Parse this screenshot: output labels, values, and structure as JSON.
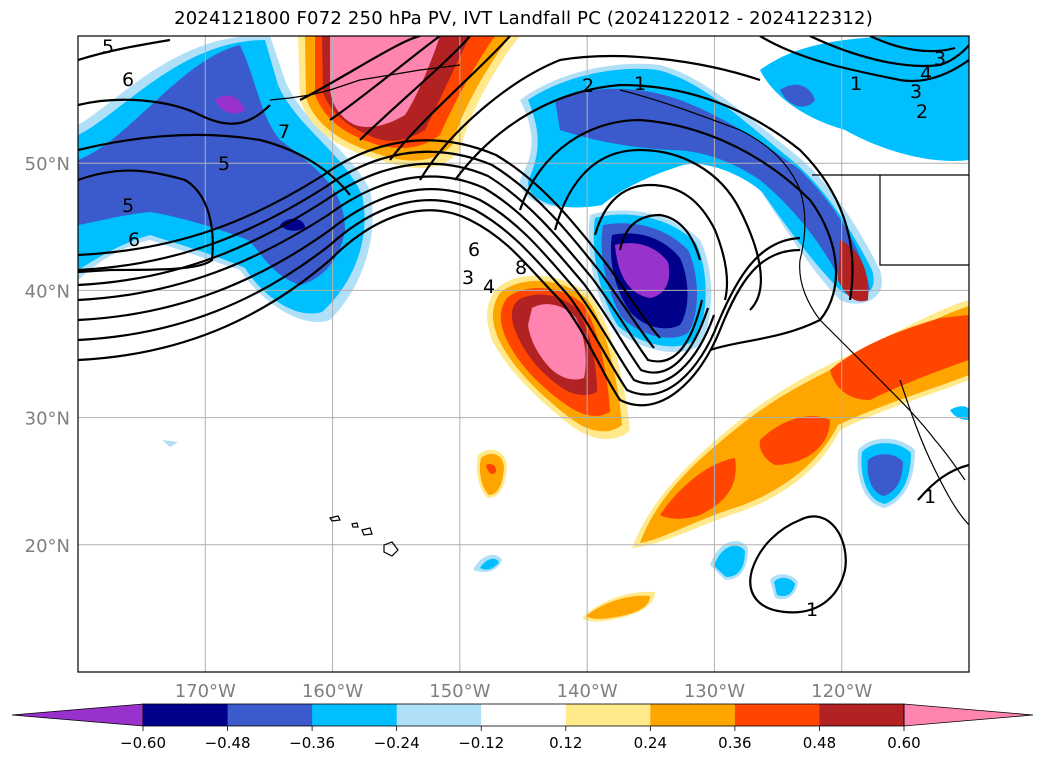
{
  "title": "2024121800 F072 250 hPa PV, IVT Landfall PC (2024122012 - 2024122312)",
  "map": {
    "lon_range": [
      180,
      110
    ],
    "lat_range": [
      10,
      60
    ],
    "lat_ticks": [
      {
        "value": 20,
        "label": "20°N"
      },
      {
        "value": 30,
        "label": "30°N"
      },
      {
        "value": 40,
        "label": "40°N"
      },
      {
        "value": 50,
        "label": "50°N"
      }
    ],
    "lon_ticks": [
      {
        "value": 170,
        "label": "170°W"
      },
      {
        "value": 160,
        "label": "160°W"
      },
      {
        "value": 150,
        "label": "150°W"
      },
      {
        "value": 140,
        "label": "140°W"
      },
      {
        "value": 130,
        "label": "130°W"
      },
      {
        "value": 120,
        "label": "120°W"
      }
    ],
    "gridlines": true,
    "colors": {
      "grid": "#b0b0b0",
      "contour": "#000000",
      "coast": "#000000"
    }
  },
  "contour_labels": [
    {
      "text": "5"
    },
    {
      "text": "6"
    },
    {
      "text": "7"
    },
    {
      "text": "5"
    },
    {
      "text": "5"
    },
    {
      "text": "6"
    },
    {
      "text": "6"
    },
    {
      "text": "3"
    },
    {
      "text": "4"
    },
    {
      "text": "8"
    },
    {
      "text": "2"
    },
    {
      "text": "1"
    },
    {
      "text": "1"
    },
    {
      "text": "4"
    },
    {
      "text": "3"
    },
    {
      "text": "2"
    },
    {
      "text": "3"
    },
    {
      "text": "1"
    },
    {
      "text": "1"
    }
  ],
  "colorbar": {
    "colors": [
      "#9932cc",
      "#00008b",
      "#3b5bcc",
      "#00bfff",
      "#b0e0f8",
      "#ffffff",
      "#ffe98a",
      "#ffa500",
      "#ff4500",
      "#b22222",
      "#ff85b0"
    ],
    "ticks": [
      "−0.60",
      "−0.48",
      "−0.36",
      "−0.24",
      "−0.12",
      "0.12",
      "0.24",
      "0.36",
      "0.48",
      "0.60"
    ]
  }
}
